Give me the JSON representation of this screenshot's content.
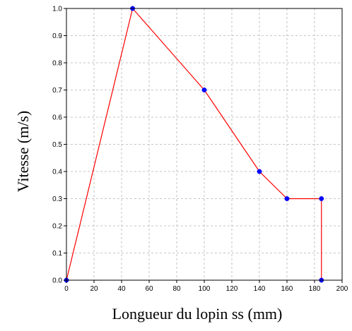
{
  "chart_data": {
    "type": "line",
    "title": "",
    "xlabel": "Longueur du lopin ss (mm)",
    "ylabel": "Vitesse (m/s)",
    "xlim": [
      0,
      200
    ],
    "ylim": [
      0.0,
      1.0
    ],
    "x_ticks": [
      "0",
      "20",
      "40",
      "60",
      "80",
      "100",
      "120",
      "140",
      "160",
      "180",
      "200"
    ],
    "y_ticks": [
      "0.0",
      "0.1",
      "0.2",
      "0.3",
      "0.4",
      "0.5",
      "0.6",
      "0.7",
      "0.8",
      "0.9",
      "1.0"
    ],
    "grid": true,
    "legend": "none",
    "series": [
      {
        "line_color": "#ff0000",
        "marker_color": "#0000ff",
        "x": [
          0,
          48,
          100,
          140,
          160,
          185,
          185
        ],
        "y": [
          0.0,
          1.0,
          0.7,
          0.4,
          0.3,
          0.3,
          0.0
        ]
      }
    ]
  }
}
